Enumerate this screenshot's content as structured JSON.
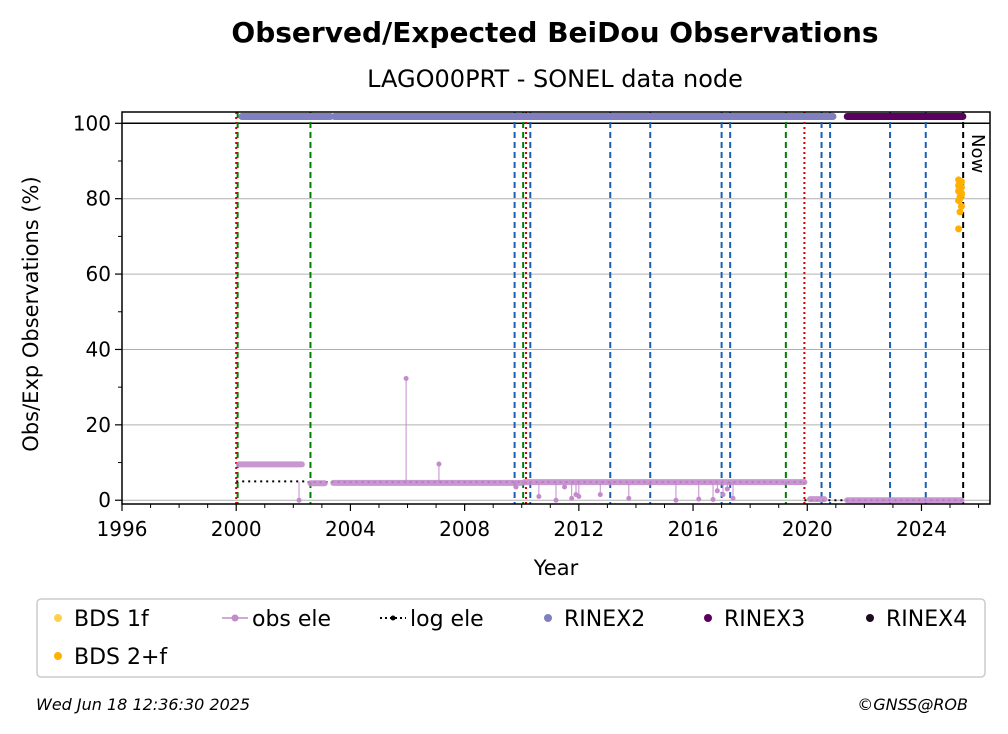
{
  "chart_data": {
    "type": "scatter",
    "title": "Observed/Expected BeiDou Observations",
    "subtitle": "LAGO00PRT - SONEL data node",
    "xlabel": "Year",
    "ylabel": "Obs/Exp Observations (%)",
    "xlim": [
      1996,
      2026.4
    ],
    "ylim": [
      -1,
      103
    ],
    "xticks": [
      "1996",
      "2000",
      "2004",
      "2008",
      "2012",
      "2016",
      "2020",
      "2024"
    ],
    "yticks": [
      "0",
      "20",
      "40",
      "60",
      "80",
      "100"
    ],
    "grid": "horizontal",
    "now_label": "Now",
    "now_x": 2025.46,
    "legend": {
      "placement": "below",
      "entries": [
        {
          "label": "BDS 1f",
          "color": "#ffd24d",
          "marker": "dot"
        },
        {
          "label": "obs ele",
          "color": "#c38bcc",
          "marker": "line-dot"
        },
        {
          "label": "log ele",
          "color": "#000000",
          "marker": "dotted-line"
        },
        {
          "label": "RINEX2",
          "color": "#8080c0",
          "marker": "dot"
        },
        {
          "label": "RINEX3",
          "color": "#5c0060",
          "marker": "dot"
        },
        {
          "label": "RINEX4",
          "color": "#1e0a1e",
          "marker": "dot"
        },
        {
          "label": "BDS 2+f",
          "color": "#ffb000",
          "marker": "dot"
        }
      ]
    },
    "vlines_red": [
      2000.0,
      2010.15,
      2019.9
    ],
    "vlines_green": [
      2000.05,
      2002.6,
      2010.05,
      2019.25
    ],
    "vlines_blue": [
      2009.75,
      2010.3,
      2013.1,
      2014.5,
      2017.0,
      2017.3,
      2020.5,
      2020.8,
      2022.9,
      2024.15
    ],
    "rinex2_segments": [
      [
        2000.2,
        2003.3
      ],
      [
        2003.45,
        2020.9
      ]
    ],
    "rinex3_segments": [
      [
        2021.4,
        2025.45
      ]
    ],
    "rinex_y": 101.8,
    "log_ele": [
      {
        "x": [
          2000.0,
          2002.5
        ],
        "y": 5.0
      },
      {
        "x": [
          2002.5,
          2019.9
        ],
        "y": 4.8
      },
      {
        "x": [
          2019.9,
          2025.45
        ],
        "y": 0.0
      }
    ],
    "obs_ele_segments": [
      {
        "x": [
          2000.1,
          2002.3
        ],
        "y": 9.5
      },
      {
        "x": [
          2002.6,
          2003.1
        ],
        "y": 4.5
      },
      {
        "x": [
          2003.4,
          2010.0
        ],
        "y": 4.6
      },
      {
        "x": [
          2010.1,
          2019.9
        ],
        "y": 4.8
      },
      {
        "x": [
          2020.1,
          2020.6
        ],
        "y": 0.3
      },
      {
        "x": [
          2021.4,
          2025.4
        ],
        "y": 0.0
      }
    ],
    "obs_ele_outliers": [
      {
        "x": 2002.2,
        "y": 0.0
      },
      {
        "x": 2005.95,
        "y": 32.3
      },
      {
        "x": 2007.1,
        "y": 9.6
      },
      {
        "x": 2009.8,
        "y": 3.5
      },
      {
        "x": 2010.6,
        "y": 1.0
      },
      {
        "x": 2011.2,
        "y": 0.0
      },
      {
        "x": 2011.5,
        "y": 3.5
      },
      {
        "x": 2011.75,
        "y": 0.5
      },
      {
        "x": 2011.9,
        "y": 1.5
      },
      {
        "x": 2012.0,
        "y": 1.0
      },
      {
        "x": 2012.75,
        "y": 1.5
      },
      {
        "x": 2013.75,
        "y": 0.5
      },
      {
        "x": 2015.4,
        "y": 0.0
      },
      {
        "x": 2016.2,
        "y": 0.3
      },
      {
        "x": 2016.7,
        "y": 0.2
      },
      {
        "x": 2016.85,
        "y": 2.5
      },
      {
        "x": 2017.05,
        "y": 1.5
      },
      {
        "x": 2017.2,
        "y": 3.0
      },
      {
        "x": 2017.4,
        "y": 0.5
      }
    ],
    "bds2f_points": [
      72.0,
      76.5,
      78.0,
      79.5,
      80.5,
      81.0,
      82.0,
      82.5,
      83.0,
      83.5,
      84.0,
      84.5,
      85.0,
      80.0,
      81.5
    ],
    "bds2f_x": 2025.35
  },
  "footer": {
    "timestamp": "Wed Jun 18 12:36:30 2025",
    "credit": "©GNSS@ROB"
  }
}
